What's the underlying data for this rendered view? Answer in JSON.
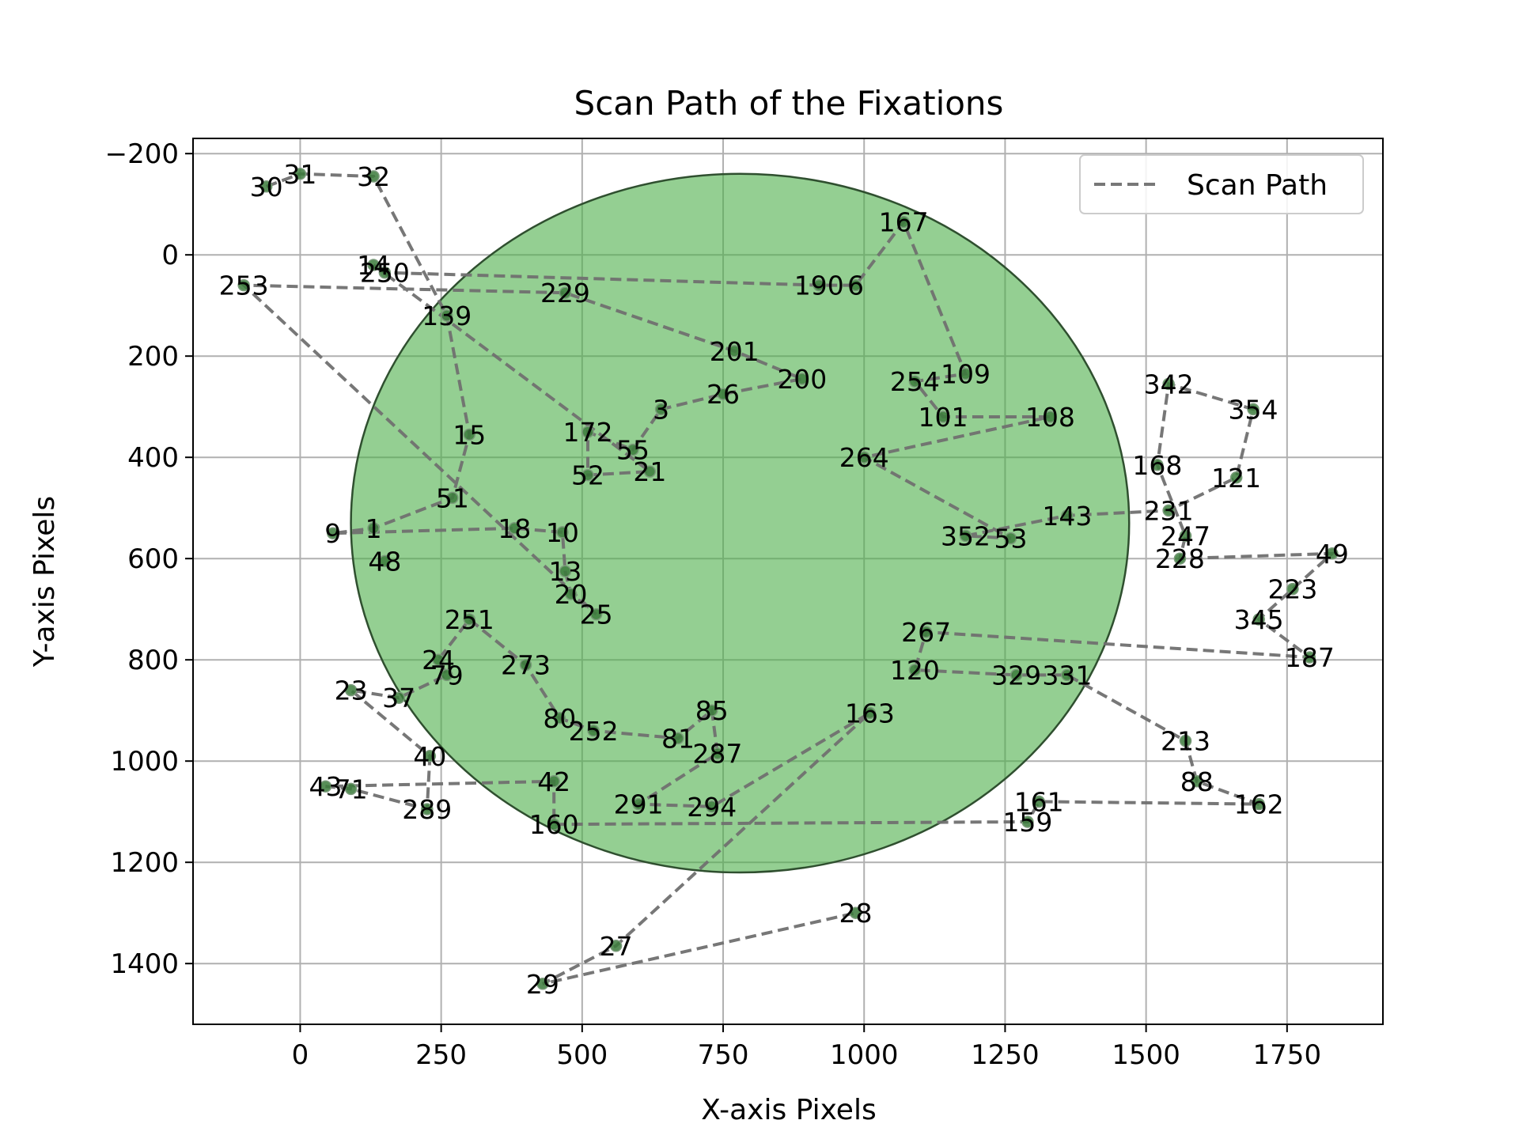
{
  "chart_data": {
    "type": "scatter",
    "title": "Scan Path of the Fixations",
    "xlabel": "X-axis Pixels",
    "ylabel": "Y-axis Pixels",
    "xlim": [
      -190,
      1920
    ],
    "ylim": [
      1520,
      -230
    ],
    "y_inverted": true,
    "xticks": [
      0,
      250,
      500,
      750,
      1000,
      1250,
      1500,
      1750
    ],
    "yticks": [
      -200,
      0,
      200,
      400,
      600,
      800,
      1000,
      1200,
      1400
    ],
    "ytick_labels": [
      "−200",
      "0",
      "200",
      "400",
      "600",
      "800",
      "1000",
      "1200",
      "1400"
    ],
    "grid": true,
    "legend": {
      "position": "top-right",
      "entries": [
        {
          "label": "Scan Path",
          "style": "dashed"
        }
      ]
    },
    "colors": {
      "path": "#707070",
      "circle_fill": "#4daf4a",
      "circle_edge": "#2f4f2f",
      "point": "#3a7a3a"
    },
    "region": {
      "shape": "circle",
      "cx": 780,
      "cy": 530,
      "r": 690
    },
    "fixations": [
      {
        "label": "1",
        "x": 130,
        "y": 540
      },
      {
        "label": "3",
        "x": 640,
        "y": 305
      },
      {
        "label": "6",
        "x": 985,
        "y": 60
      },
      {
        "label": "9",
        "x": 58,
        "y": 550
      },
      {
        "label": "10",
        "x": 465,
        "y": 548
      },
      {
        "label": "13",
        "x": 470,
        "y": 625
      },
      {
        "label": "14",
        "x": 130,
        "y": 20
      },
      {
        "label": "15",
        "x": 300,
        "y": 355
      },
      {
        "label": "18",
        "x": 380,
        "y": 540
      },
      {
        "label": "20",
        "x": 480,
        "y": 670
      },
      {
        "label": "21",
        "x": 620,
        "y": 428
      },
      {
        "label": "23",
        "x": 90,
        "y": 860
      },
      {
        "label": "24",
        "x": 245,
        "y": 800
      },
      {
        "label": "25",
        "x": 525,
        "y": 710
      },
      {
        "label": "26",
        "x": 750,
        "y": 275
      },
      {
        "label": "27",
        "x": 560,
        "y": 1365
      },
      {
        "label": "28",
        "x": 985,
        "y": 1300
      },
      {
        "label": "29",
        "x": 430,
        "y": 1440
      },
      {
        "label": "30",
        "x": -60,
        "y": -135
      },
      {
        "label": "31",
        "x": 0,
        "y": -160
      },
      {
        "label": "32",
        "x": 130,
        "y": -155
      },
      {
        "label": "37",
        "x": 175,
        "y": 875
      },
      {
        "label": "40",
        "x": 230,
        "y": 990
      },
      {
        "label": "42",
        "x": 450,
        "y": 1040
      },
      {
        "label": "43",
        "x": 45,
        "y": 1050
      },
      {
        "label": "48",
        "x": 150,
        "y": 605
      },
      {
        "label": "49",
        "x": 1830,
        "y": 590
      },
      {
        "label": "51",
        "x": 270,
        "y": 480
      },
      {
        "label": "52",
        "x": 510,
        "y": 435
      },
      {
        "label": "53",
        "x": 1260,
        "y": 560
      },
      {
        "label": "55",
        "x": 590,
        "y": 385
      },
      {
        "label": "71",
        "x": 90,
        "y": 1055
      },
      {
        "label": "79",
        "x": 260,
        "y": 830
      },
      {
        "label": "80",
        "x": 460,
        "y": 915
      },
      {
        "label": "81",
        "x": 670,
        "y": 955
      },
      {
        "label": "85",
        "x": 730,
        "y": 900
      },
      {
        "label": "88",
        "x": 1590,
        "y": 1040
      },
      {
        "label": "101",
        "x": 1140,
        "y": 320
      },
      {
        "label": "108",
        "x": 1330,
        "y": 320
      },
      {
        "label": "109",
        "x": 1180,
        "y": 235
      },
      {
        "label": "120",
        "x": 1090,
        "y": 820
      },
      {
        "label": "121",
        "x": 1660,
        "y": 440
      },
      {
        "label": "139",
        "x": 260,
        "y": 120
      },
      {
        "label": "143",
        "x": 1360,
        "y": 515
      },
      {
        "label": "159",
        "x": 1290,
        "y": 1120
      },
      {
        "label": "160",
        "x": 450,
        "y": 1125
      },
      {
        "label": "161",
        "x": 1310,
        "y": 1080
      },
      {
        "label": "162",
        "x": 1700,
        "y": 1085
      },
      {
        "label": "163",
        "x": 1010,
        "y": 905
      },
      {
        "label": "167",
        "x": 1070,
        "y": -65
      },
      {
        "label": "168",
        "x": 1520,
        "y": 415
      },
      {
        "label": "172",
        "x": 510,
        "y": 350
      },
      {
        "label": "187",
        "x": 1790,
        "y": 795
      },
      {
        "label": "190",
        "x": 920,
        "y": 60
      },
      {
        "label": "200",
        "x": 890,
        "y": 245
      },
      {
        "label": "201",
        "x": 770,
        "y": 190
      },
      {
        "label": "213",
        "x": 1570,
        "y": 960
      },
      {
        "label": "223",
        "x": 1760,
        "y": 660
      },
      {
        "label": "228",
        "x": 1560,
        "y": 600
      },
      {
        "label": "229",
        "x": 470,
        "y": 75
      },
      {
        "label": "231",
        "x": 1540,
        "y": 505
      },
      {
        "label": "247",
        "x": 1570,
        "y": 555
      },
      {
        "label": "250",
        "x": 150,
        "y": 35
      },
      {
        "label": "251",
        "x": 300,
        "y": 720
      },
      {
        "label": "252",
        "x": 520,
        "y": 940
      },
      {
        "label": "253",
        "x": -100,
        "y": 60
      },
      {
        "label": "254",
        "x": 1090,
        "y": 250
      },
      {
        "label": "264",
        "x": 1000,
        "y": 400
      },
      {
        "label": "267",
        "x": 1110,
        "y": 745
      },
      {
        "label": "273",
        "x": 400,
        "y": 810
      },
      {
        "label": "287",
        "x": 740,
        "y": 985
      },
      {
        "label": "289",
        "x": 225,
        "y": 1095
      },
      {
        "label": "291",
        "x": 600,
        "y": 1085
      },
      {
        "label": "294",
        "x": 730,
        "y": 1090
      },
      {
        "label": "329",
        "x": 1270,
        "y": 830
      },
      {
        "label": "331",
        "x": 1360,
        "y": 830
      },
      {
        "label": "342",
        "x": 1540,
        "y": 255
      },
      {
        "label": "345",
        "x": 1700,
        "y": 720
      },
      {
        "label": "352",
        "x": 1180,
        "y": 555
      },
      {
        "label": "354",
        "x": 1690,
        "y": 305
      }
    ],
    "path_order": [
      "30",
      "31",
      "32",
      "139",
      "15",
      "51",
      "1",
      "9",
      "18",
      "10",
      "13",
      "20",
      "25",
      "253",
      "229",
      "201",
      "200",
      "26",
      "3",
      "55",
      "172",
      "52",
      "21",
      "14",
      "250",
      "190",
      "6",
      "167",
      "109",
      "254",
      "101",
      "108",
      "264",
      "53",
      "352",
      "143",
      "231",
      "121",
      "354",
      "342",
      "168",
      "247",
      "228",
      "49",
      "223",
      "345",
      "187",
      "267",
      "120",
      "329",
      "331",
      "213",
      "88",
      "162",
      "161",
      "159",
      "160",
      "42",
      "43",
      "71",
      "289",
      "40",
      "23",
      "37",
      "79",
      "24",
      "251",
      "273",
      "80",
      "252",
      "81",
      "85",
      "287",
      "291",
      "294",
      "163",
      "27",
      "29",
      "28"
    ]
  }
}
